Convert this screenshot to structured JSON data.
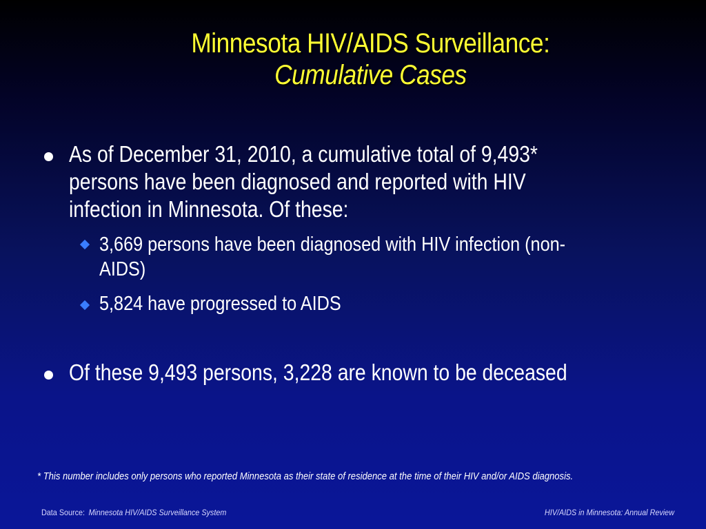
{
  "title": {
    "line1": "Minnesota HIV/AIDS Surveillance:",
    "line2": "Cumulative Cases"
  },
  "bullets": [
    {
      "lines": [
        "As of December 31, 2010, a cumulative total of 9,493*",
        "persons have been diagnosed and reported with HIV",
        "infection in Minnesota. Of these:"
      ],
      "sub_bullets": [
        {
          "lines": [
            "3,669 persons have been diagnosed with HIV infection (non-",
            "AIDS)"
          ]
        },
        {
          "lines": [
            "5,824 have progressed to AIDS"
          ]
        }
      ]
    },
    {
      "lines": [
        "Of these 9,493 persons, 3,228 are known to be deceased"
      ]
    }
  ],
  "footnote": "* This number includes only persons who reported Minnesota as their state of residence at the time of their HIV and/or AIDS diagnosis.",
  "footer": {
    "data_source_label": "Data Source:",
    "data_source": "Minnesota HIV/AIDS Surveillance System",
    "right": "HIV/AIDS in Minnesota: Annual Review"
  },
  "colors": {
    "title": "#ffff33",
    "text": "#ffffff",
    "sub_bullet_marker": "#3a7dff",
    "background_top": "#000000",
    "background_bottom": "#0a1699"
  }
}
